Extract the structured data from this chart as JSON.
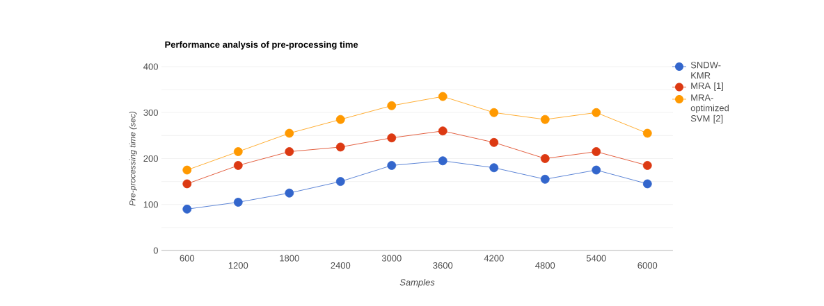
{
  "chart_data": {
    "type": "line",
    "title": "Performance analysis of pre-processing time",
    "xlabel": "Samples",
    "ylabel": "Pre-processing time (sec)",
    "categories": [
      "600",
      "1200",
      "1800",
      "2400",
      "3000",
      "3600",
      "4200",
      "4800",
      "5400",
      "6000"
    ],
    "series": [
      {
        "name": "SNDW-KMR",
        "color": "#3366cc",
        "values": [
          90,
          105,
          125,
          150,
          185,
          195,
          180,
          155,
          175,
          145
        ]
      },
      {
        "name": "MRA [1]",
        "color": "#dc3912",
        "values": [
          145,
          185,
          215,
          225,
          245,
          260,
          235,
          200,
          215,
          185
        ]
      },
      {
        "name": "MRA-optimized SVM [2]",
        "color": "#ff9900",
        "values": [
          175,
          215,
          255,
          285,
          315,
          335,
          300,
          285,
          300,
          255
        ]
      }
    ],
    "ylim": [
      0,
      400
    ],
    "yticks": [
      0,
      {
        "value": 50,
        "label": null
      },
      100,
      {
        "value": 150,
        "label": null
      },
      200,
      {
        "value": 250,
        "label": null
      },
      300,
      {
        "value": 350,
        "label": null
      },
      400
    ],
    "grid": "y",
    "legend": "top right",
    "marker": "circle",
    "line_style": "solid"
  }
}
